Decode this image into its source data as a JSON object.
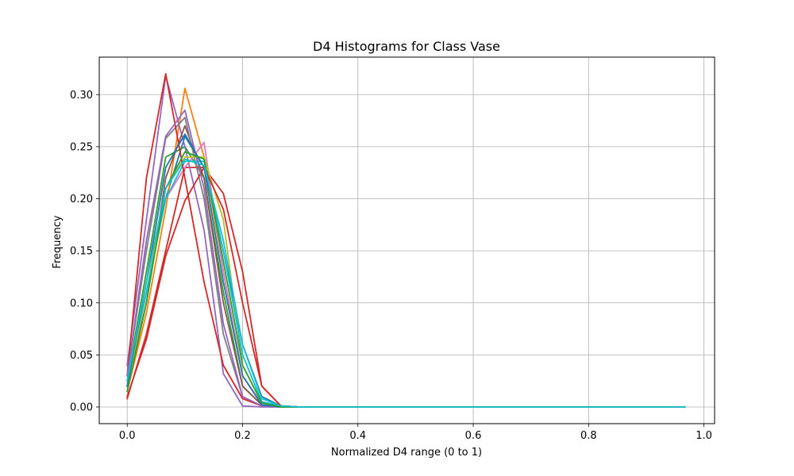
{
  "chart_data": {
    "type": "line",
    "title": "D4 Histograms for Class Vase",
    "xlabel": "Normalized D4 range (0 to 1)",
    "ylabel": "Frequency",
    "xlim": [
      -0.0485,
      1.0185
    ],
    "ylim": [
      -0.016,
      0.336
    ],
    "grid": true,
    "xticks": [
      0.0,
      0.2,
      0.4,
      0.6,
      0.8,
      1.0
    ],
    "xtick_labels": [
      "0.0",
      "0.2",
      "0.4",
      "0.6",
      "0.8",
      "1.0"
    ],
    "yticks": [
      0.0,
      0.05,
      0.1,
      0.15,
      0.2,
      0.25,
      0.3
    ],
    "ytick_labels": [
      "0.00",
      "0.05",
      "0.10",
      "0.15",
      "0.20",
      "0.25",
      "0.30"
    ],
    "x": [
      0.0,
      0.0333,
      0.0667,
      0.1,
      0.1333,
      0.1667,
      0.2,
      0.2333,
      0.2667,
      0.3,
      0.3333,
      0.3667,
      0.4,
      0.4333,
      0.4667,
      0.5,
      0.5333,
      0.5667,
      0.6,
      0.6333,
      0.6667,
      0.7,
      0.7333,
      0.7667,
      0.8,
      0.8333,
      0.8667,
      0.9,
      0.9333,
      0.9667
    ],
    "series": [
      {
        "color": "#1f77b4",
        "values": [
          0.02,
          0.11,
          0.2,
          0.26,
          0.23,
          0.15,
          0.06,
          0.01,
          0.001,
          0,
          0,
          0,
          0,
          0,
          0,
          0,
          0,
          0,
          0,
          0,
          0,
          0,
          0,
          0,
          0,
          0,
          0,
          0,
          0,
          0
        ]
      },
      {
        "color": "#ff7f0e",
        "values": [
          0.015,
          0.09,
          0.19,
          0.306,
          0.24,
          0.13,
          0.03,
          0.003,
          0,
          0,
          0,
          0,
          0,
          0,
          0,
          0,
          0,
          0,
          0,
          0,
          0,
          0,
          0,
          0,
          0,
          0,
          0,
          0,
          0,
          0
        ]
      },
      {
        "color": "#2ca02c",
        "values": [
          0.025,
          0.13,
          0.24,
          0.25,
          0.22,
          0.11,
          0.02,
          0.002,
          0,
          0,
          0,
          0,
          0,
          0,
          0,
          0,
          0,
          0,
          0,
          0,
          0,
          0,
          0,
          0,
          0,
          0,
          0,
          0,
          0,
          0
        ]
      },
      {
        "color": "#d62728",
        "values": [
          0.008,
          0.07,
          0.15,
          0.23,
          0.23,
          0.205,
          0.13,
          0.02,
          0.001,
          0,
          0,
          0,
          0,
          0,
          0,
          0,
          0,
          0,
          0,
          0,
          0,
          0,
          0,
          0,
          0,
          0,
          0,
          0,
          0,
          0
        ]
      },
      {
        "color": "#9467bd",
        "values": [
          0.04,
          0.18,
          0.318,
          0.25,
          0.17,
          0.032,
          0.001,
          0,
          0,
          0,
          0,
          0,
          0,
          0,
          0,
          0,
          0,
          0,
          0,
          0,
          0,
          0,
          0,
          0,
          0,
          0,
          0,
          0,
          0,
          0
        ]
      },
      {
        "color": "#8c564b",
        "values": [
          0.02,
          0.1,
          0.22,
          0.27,
          0.22,
          0.1,
          0.02,
          0.002,
          0,
          0,
          0,
          0,
          0,
          0,
          0,
          0,
          0,
          0,
          0,
          0,
          0,
          0,
          0,
          0,
          0,
          0,
          0,
          0,
          0,
          0
        ]
      },
      {
        "color": "#e377c2",
        "values": [
          0.02,
          0.11,
          0.2,
          0.23,
          0.254,
          0.13,
          0.03,
          0.003,
          0,
          0,
          0,
          0,
          0,
          0,
          0,
          0,
          0,
          0,
          0,
          0,
          0,
          0,
          0,
          0,
          0,
          0,
          0,
          0,
          0,
          0
        ]
      },
      {
        "color": "#7f7f7f",
        "values": [
          0.03,
          0.15,
          0.258,
          0.278,
          0.2,
          0.07,
          0.01,
          0.001,
          0,
          0,
          0,
          0,
          0,
          0,
          0,
          0,
          0,
          0,
          0,
          0,
          0,
          0,
          0,
          0,
          0,
          0,
          0,
          0,
          0,
          0
        ]
      },
      {
        "color": "#bcbd22",
        "values": [
          0.02,
          0.11,
          0.21,
          0.24,
          0.24,
          0.18,
          0.04,
          0.004,
          0,
          0,
          0,
          0,
          0,
          0,
          0,
          0,
          0,
          0,
          0,
          0,
          0,
          0,
          0,
          0,
          0,
          0,
          0,
          0,
          0,
          0
        ]
      },
      {
        "color": "#17becf",
        "values": [
          0.03,
          0.11,
          0.2,
          0.236,
          0.236,
          0.15,
          0.05,
          0.005,
          0.001,
          0,
          0,
          0,
          0,
          0,
          0,
          0,
          0,
          0,
          0,
          0,
          0,
          0,
          0,
          0,
          0,
          0,
          0,
          0,
          0,
          0
        ]
      },
      {
        "color": "#d62728",
        "values": [
          0.03,
          0.22,
          0.32,
          0.22,
          0.12,
          0.04,
          0.008,
          0.001,
          0,
          0,
          0,
          0,
          0,
          0,
          0,
          0,
          0,
          0,
          0,
          0,
          0,
          0,
          0,
          0,
          0,
          0,
          0,
          0,
          0,
          0
        ]
      },
      {
        "color": "#d62728",
        "values": [
          0.01,
          0.065,
          0.145,
          0.198,
          0.23,
          0.19,
          0.1,
          0.02,
          0.001,
          0,
          0,
          0,
          0,
          0,
          0,
          0,
          0,
          0,
          0,
          0,
          0,
          0,
          0,
          0,
          0,
          0,
          0,
          0,
          0,
          0
        ]
      },
      {
        "color": "#9467bd",
        "values": [
          0.03,
          0.16,
          0.26,
          0.285,
          0.21,
          0.08,
          0.01,
          0.001,
          0,
          0,
          0,
          0,
          0,
          0,
          0,
          0,
          0,
          0,
          0,
          0,
          0,
          0,
          0,
          0,
          0,
          0,
          0,
          0,
          0,
          0
        ]
      },
      {
        "color": "#1f77b4",
        "values": [
          0.02,
          0.12,
          0.23,
          0.262,
          0.23,
          0.12,
          0.03,
          0.002,
          0,
          0,
          0,
          0,
          0,
          0,
          0,
          0,
          0,
          0,
          0,
          0,
          0,
          0,
          0,
          0,
          0,
          0,
          0,
          0,
          0,
          0
        ]
      },
      {
        "color": "#2ca02c",
        "values": [
          0.015,
          0.1,
          0.21,
          0.245,
          0.238,
          0.14,
          0.04,
          0.004,
          0,
          0,
          0,
          0,
          0,
          0,
          0,
          0,
          0,
          0,
          0,
          0,
          0,
          0,
          0,
          0,
          0,
          0,
          0,
          0,
          0,
          0
        ]
      },
      {
        "color": "#17becf",
        "values": [
          0.025,
          0.12,
          0.21,
          0.238,
          0.232,
          0.16,
          0.06,
          0.008,
          0.001,
          0,
          0,
          0,
          0,
          0,
          0,
          0,
          0,
          0,
          0,
          0,
          0,
          0,
          0,
          0,
          0,
          0,
          0,
          0,
          0,
          0
        ]
      }
    ]
  }
}
